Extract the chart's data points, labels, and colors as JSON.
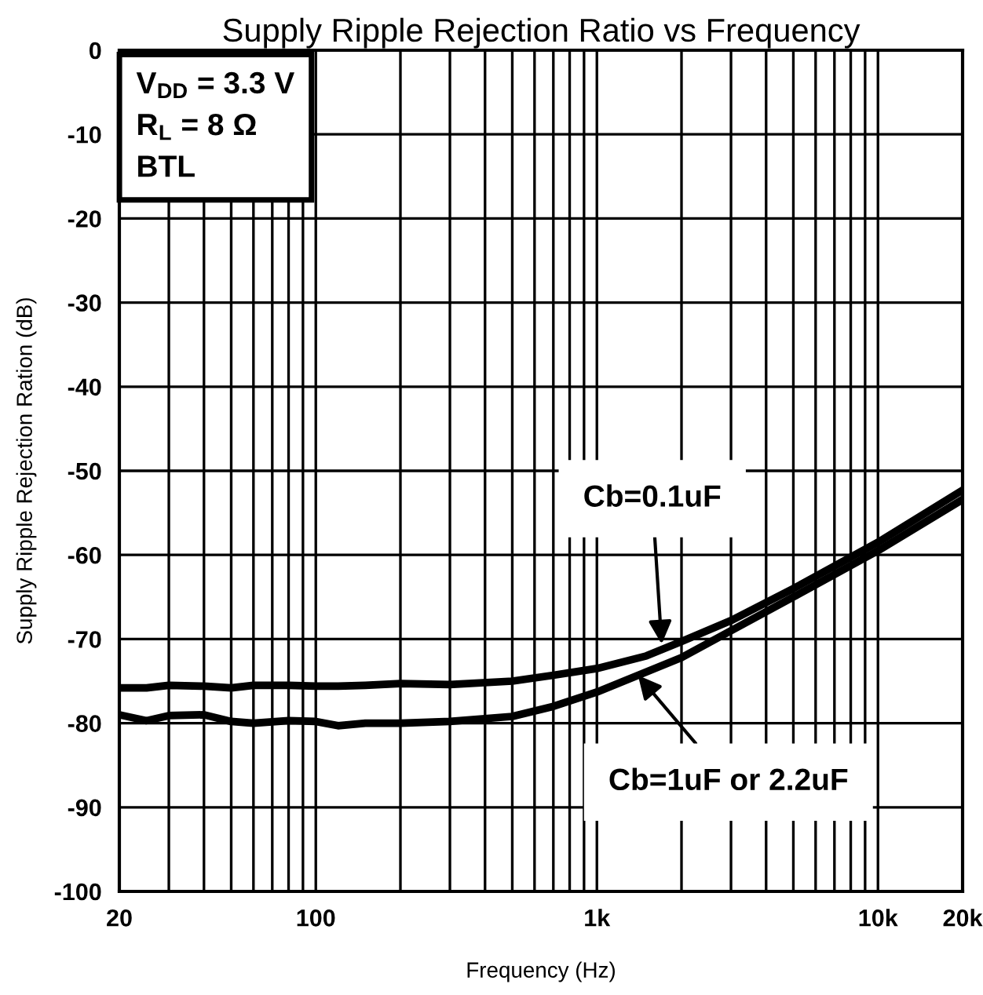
{
  "chart_data": {
    "type": "line",
    "title": "Supply Ripple Rejection Ratio vs Frequency",
    "xlabel": "Frequency (Hz)",
    "ylabel": "Supply Ripple Rejection Ration (dB)",
    "log": "x",
    "grid": true,
    "line_style": "solid",
    "marker": "none",
    "xlim": [
      20,
      20000
    ],
    "xticks": [
      {
        "value": 20,
        "label": "20"
      },
      {
        "value": 30,
        "label": null
      },
      {
        "value": 40,
        "label": null
      },
      {
        "value": 50,
        "label": null
      },
      {
        "value": 60,
        "label": null
      },
      {
        "value": 70,
        "label": null
      },
      {
        "value": 80,
        "label": null
      },
      {
        "value": 90,
        "label": null
      },
      {
        "value": 100,
        "label": "100"
      },
      {
        "value": 200,
        "label": null
      },
      {
        "value": 300,
        "label": null
      },
      {
        "value": 400,
        "label": null
      },
      {
        "value": 500,
        "label": null
      },
      {
        "value": 600,
        "label": null
      },
      {
        "value": 700,
        "label": null
      },
      {
        "value": 800,
        "label": null
      },
      {
        "value": 900,
        "label": null
      },
      {
        "value": 1000,
        "label": "1k"
      },
      {
        "value": 2000,
        "label": null
      },
      {
        "value": 3000,
        "label": null
      },
      {
        "value": 4000,
        "label": null
      },
      {
        "value": 5000,
        "label": null
      },
      {
        "value": 6000,
        "label": null
      },
      {
        "value": 7000,
        "label": null
      },
      {
        "value": 8000,
        "label": null
      },
      {
        "value": 9000,
        "label": null
      },
      {
        "value": 10000,
        "label": "10k"
      },
      {
        "value": 20000,
        "label": "20k"
      }
    ],
    "ylim": [
      -100,
      0
    ],
    "yticks": [
      -100,
      -90,
      -80,
      -70,
      -60,
      -50,
      -40,
      -30,
      -20,
      -10,
      0
    ],
    "series": [
      {
        "color": "#000000",
        "x": [
          20,
          25,
          30,
          40,
          50,
          60,
          80,
          100,
          120,
          150,
          200,
          300,
          500,
          700,
          1000,
          1500,
          2000,
          3000,
          5000,
          10000,
          20000
        ],
        "values": [
          -75.8,
          -75.8,
          -75.5,
          -75.6,
          -75.8,
          -75.5,
          -75.5,
          -75.6,
          -75.6,
          -75.5,
          -75.3,
          -75.4,
          -75,
          -74.3,
          -73.5,
          -72,
          -70.3,
          -67.8,
          -64,
          -58.5,
          -52.3
        ]
      },
      {
        "color": "#000000",
        "x": [
          20,
          25,
          30,
          40,
          50,
          60,
          80,
          100,
          120,
          150,
          200,
          300,
          500,
          700,
          1000,
          2000,
          3000,
          5000,
          10000,
          20000
        ],
        "values": [
          -79,
          -79.7,
          -79.1,
          -79,
          -79.8,
          -80,
          -79.7,
          -79.8,
          -80.3,
          -80,
          -80,
          -79.8,
          -79.2,
          -78,
          -76.3,
          -72.2,
          -69,
          -65,
          -59.5,
          -53.4
        ]
      }
    ],
    "annotations": [
      "V$_{DD}$ = 3.3 V\nR$_{L}$ = 8 Ω\nBTL",
      {
        "text": "Cb=0.1uF",
        "x": 1700,
        "y": -70.6
      },
      {
        "text": "Cb=1uF or 2.2uF",
        "x": 1400,
        "y": -74.3
      }
    ]
  }
}
